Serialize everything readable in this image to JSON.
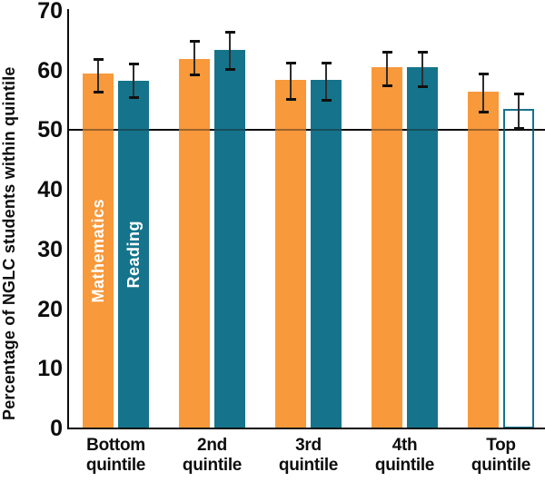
{
  "chart_data": {
    "type": "bar",
    "title": "",
    "xlabel": "",
    "ylabel": "Percentage of NGLC students within quintile",
    "ylim": [
      0,
      70
    ],
    "yticks": [
      0,
      10,
      20,
      30,
      40,
      50,
      60,
      70
    ],
    "reference_line": 50,
    "grid": false,
    "legend_position": "labels-inside-first-group-bars",
    "categories": [
      "Bottom quintile",
      "2nd quintile",
      "3rd quintile",
      "4th quintile",
      "Top quintile"
    ],
    "series": [
      {
        "name": "Mathematics",
        "color": "#F8993B",
        "values": [
          59.5,
          62.0,
          58.4,
          60.5,
          56.4
        ],
        "error_low": [
          56.5,
          59.4,
          55.2,
          57.5,
          53.1
        ],
        "error_high": [
          62.0,
          65.0,
          61.4,
          63.2,
          59.5
        ],
        "hollow": [
          false,
          false,
          false,
          false,
          false
        ]
      },
      {
        "name": "Reading",
        "color": "#15748B",
        "values": [
          58.3,
          63.5,
          58.4,
          60.5,
          53.5
        ],
        "error_low": [
          55.6,
          60.2,
          55.1,
          57.4,
          50.3
        ],
        "error_high": [
          61.1,
          66.5,
          61.3,
          63.1,
          56.2
        ],
        "hollow": [
          false,
          false,
          false,
          false,
          true
        ]
      }
    ]
  },
  "colors": {
    "mathematics": "#F8993B",
    "reading": "#15748B",
    "axis": "#0d0d0d",
    "reference_line": "#000000",
    "error_bar": "#2e2e2e",
    "bar_label_text": "#ffffff"
  }
}
